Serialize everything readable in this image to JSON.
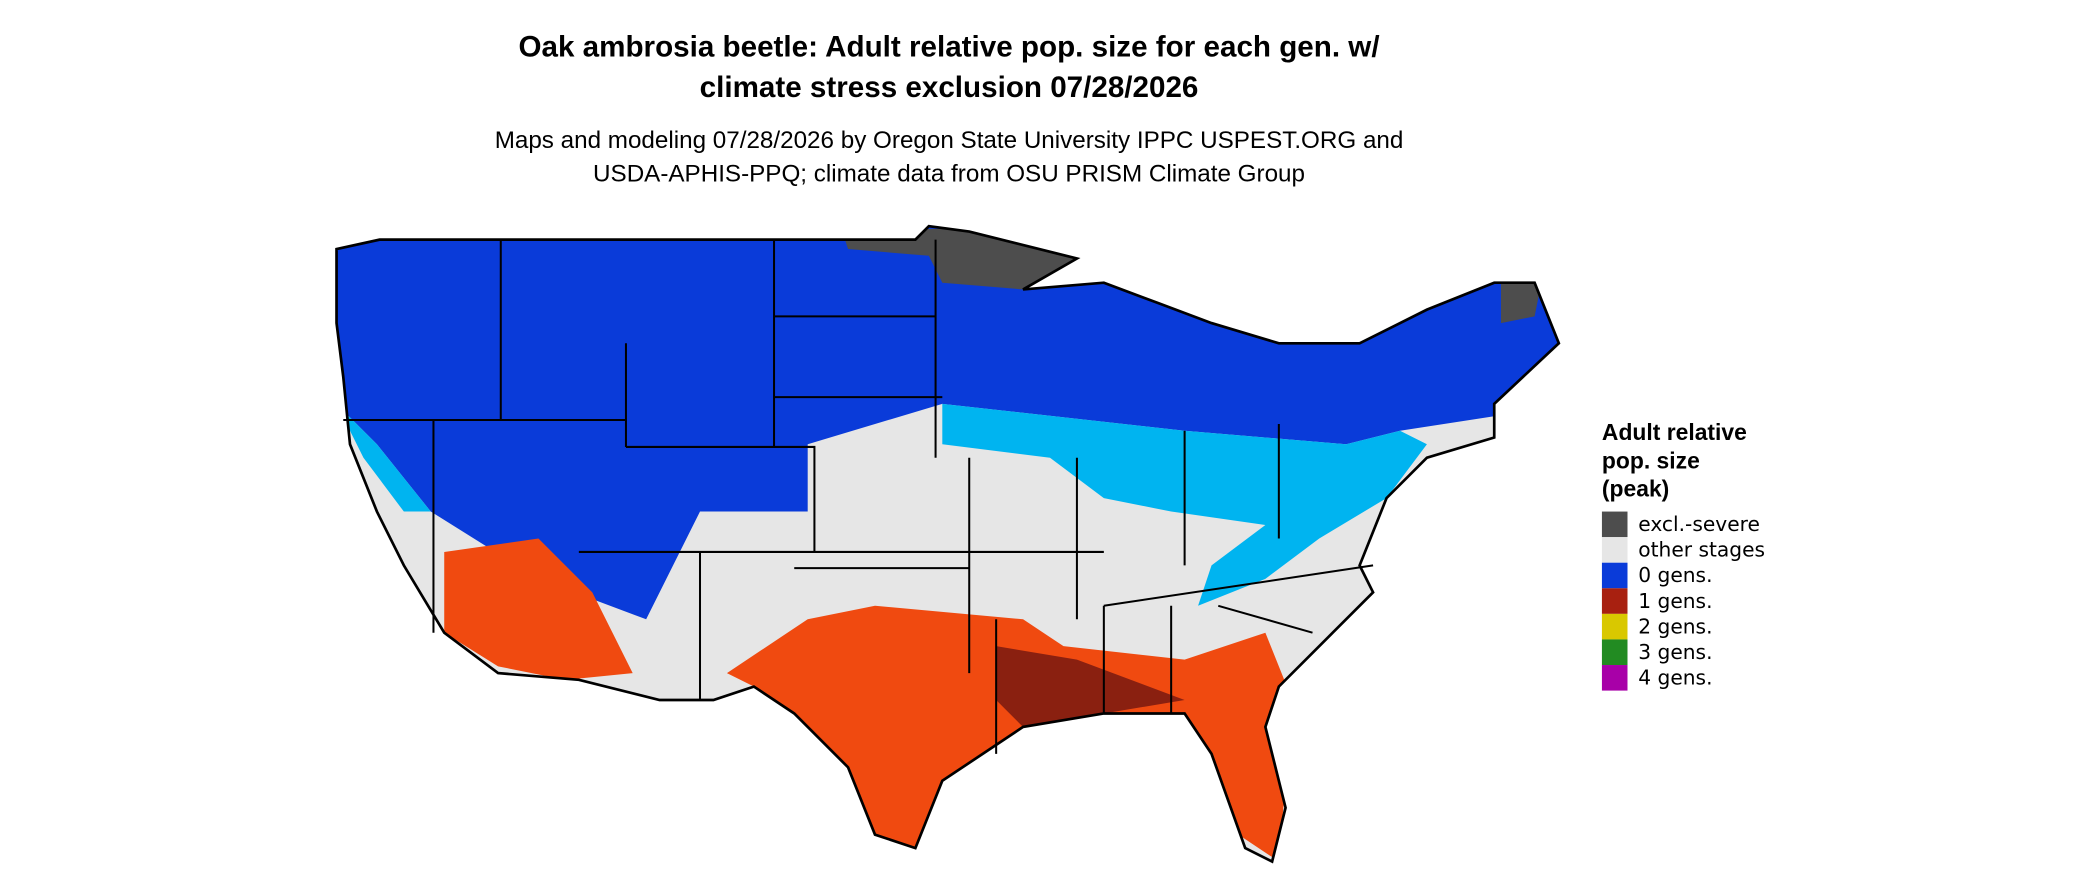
{
  "header": {
    "title_lines": [
      "Oak ambrosia beetle: Adult relative pop. size for each gen. w/",
      "climate stress exclusion 07/28/2026"
    ],
    "subtitle_lines": [
      "Maps and modeling 07/28/2026 by Oregon State University IPPC USPEST.ORG and",
      "USDA-APHIS-PPQ; climate data from OSU PRISM Climate Group"
    ]
  },
  "legend": {
    "title_lines": [
      "Adult relative",
      "pop. size",
      "(peak)"
    ],
    "items": [
      {
        "label": "excl.-severe",
        "color": "#4d4d4d"
      },
      {
        "label": "other stages",
        "color": "#e6e6e6"
      },
      {
        "label": "0 gens.",
        "color": "#0a3bd9"
      },
      {
        "label": "1 gens.",
        "color": "#a82010"
      },
      {
        "label": "2 gens.",
        "color": "#d9c800"
      },
      {
        "label": "3 gens.",
        "color": "#228b22"
      },
      {
        "label": "4 gens.",
        "color": "#a800a8"
      }
    ]
  }
}
